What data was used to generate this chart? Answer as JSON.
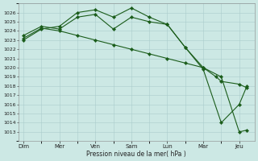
{
  "background_color": "#cce8e4",
  "grid_color": "#aacccc",
  "line_color": "#1a5c1a",
  "marker_color": "#1a5c1a",
  "ylim_min": 1012.5,
  "ylim_max": 1026.8,
  "yticks": [
    1013,
    1014,
    1015,
    1016,
    1017,
    1018,
    1019,
    1020,
    1021,
    1022,
    1023,
    1024,
    1025,
    1026
  ],
  "xlabel": "Pression niveau de la mer( hPa )",
  "day_labels": [
    "Dim",
    "Mer",
    "Ven",
    "Sam",
    "Lun",
    "Mar",
    "Jeu"
  ],
  "day_positions": [
    0,
    14,
    28,
    42,
    56,
    70,
    84
  ],
  "xlim_min": -2,
  "xlim_max": 90,
  "series": [
    {
      "x": [
        0,
        7,
        14,
        21,
        28,
        35,
        42,
        49,
        56,
        63,
        70,
        77,
        84,
        87
      ],
      "y": [
        1023.0,
        1024.2,
        1024.5,
        1026.0,
        1026.3,
        1025.5,
        1026.5,
        1025.5,
        1024.7,
        1022.2,
        1020.0,
        1019.0,
        1013.0,
        1013.2
      ]
    },
    {
      "x": [
        0,
        7,
        14,
        21,
        28,
        35,
        42,
        49,
        56,
        63,
        70,
        77,
        84,
        87
      ],
      "y": [
        1023.5,
        1024.5,
        1024.2,
        1025.5,
        1025.8,
        1024.2,
        1025.5,
        1025.0,
        1024.7,
        1022.2,
        1019.8,
        1014.0,
        1016.0,
        1018.0
      ]
    },
    {
      "x": [
        0,
        7,
        14,
        21,
        28,
        35,
        42,
        49,
        56,
        63,
        70,
        75,
        77,
        84,
        87
      ],
      "y": [
        1023.2,
        1024.3,
        1024.0,
        1023.5,
        1023.0,
        1022.5,
        1022.0,
        1021.5,
        1021.0,
        1020.5,
        1020.0,
        1019.0,
        1018.5,
        1018.2,
        1017.8
      ]
    }
  ]
}
